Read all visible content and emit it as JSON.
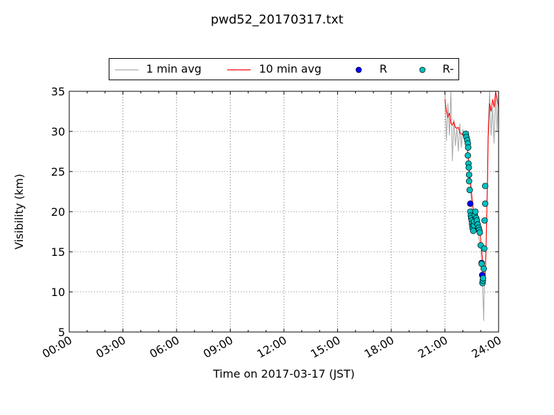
{
  "chart_data": {
    "type": "line",
    "title": "pwd52_20170317.txt",
    "xlabel": "Time on 2017-03-17 (JST)",
    "ylabel": "Visibility (km)",
    "xlim": [
      "00:00",
      "24:00"
    ],
    "ylim": [
      5,
      35
    ],
    "x_ticks": [
      "00:00",
      "03:00",
      "06:00",
      "09:00",
      "12:00",
      "15:00",
      "18:00",
      "21:00",
      "24:00"
    ],
    "y_ticks": [
      5,
      10,
      15,
      20,
      25,
      30,
      35
    ],
    "grid": true,
    "legend": {
      "placement": "top"
    },
    "series": [
      {
        "name": "1 min avg",
        "style": "line",
        "color": "#aaaaaa",
        "points": [
          [
            "21:00",
            35
          ],
          [
            "21:05",
            28.8
          ],
          [
            "21:10",
            33.5
          ],
          [
            "21:15",
            29.5
          ],
          [
            "21:20",
            35
          ],
          [
            "21:25",
            26.3
          ],
          [
            "21:30",
            31.5
          ],
          [
            "21:35",
            28.2
          ],
          [
            "21:40",
            30.5
          ],
          [
            "21:45",
            27.5
          ],
          [
            "21:50",
            31
          ],
          [
            "21:55",
            28
          ],
          [
            "22:00",
            30.2
          ],
          [
            "22:05",
            29.8
          ],
          [
            "22:10",
            28.8
          ],
          [
            "22:15",
            28
          ],
          [
            "22:20",
            26
          ],
          [
            "22:25",
            23.5
          ],
          [
            "22:30",
            20.5
          ],
          [
            "22:35",
            18.8
          ],
          [
            "22:40",
            17.5
          ],
          [
            "22:45",
            19.5
          ],
          [
            "22:50",
            17.3
          ],
          [
            "22:55",
            16.5
          ],
          [
            "23:00",
            15.5
          ],
          [
            "23:05",
            12.5
          ],
          [
            "23:08",
            9
          ],
          [
            "23:10",
            6.4
          ],
          [
            "23:12",
            10.5
          ],
          [
            "23:15",
            11.5
          ],
          [
            "23:18",
            15
          ],
          [
            "23:20",
            19
          ],
          [
            "23:22",
            23.5
          ],
          [
            "23:25",
            30.5
          ],
          [
            "23:30",
            35
          ],
          [
            "23:35",
            29.5
          ],
          [
            "23:40",
            33
          ],
          [
            "23:45",
            28.5
          ],
          [
            "23:50",
            35
          ],
          [
            "23:55",
            30
          ],
          [
            "24:00",
            35
          ]
        ]
      },
      {
        "name": "10 min avg",
        "style": "line",
        "color": "#ff0000",
        "points": [
          [
            "21:00",
            34
          ],
          [
            "21:05",
            32.5
          ],
          [
            "21:10",
            31.8
          ],
          [
            "21:15",
            32.3
          ],
          [
            "21:20",
            31
          ],
          [
            "21:25",
            30.8
          ],
          [
            "21:30",
            31.2
          ],
          [
            "21:35",
            30.5
          ],
          [
            "21:40",
            30.4
          ],
          [
            "21:45",
            30.5
          ],
          [
            "21:50",
            29.8
          ],
          [
            "22:00",
            29.6
          ],
          [
            "22:10",
            29
          ],
          [
            "22:15",
            27.8
          ],
          [
            "22:20",
            26.2
          ],
          [
            "22:25",
            24
          ],
          [
            "22:30",
            22
          ],
          [
            "22:35",
            20.3
          ],
          [
            "22:40",
            19.3
          ],
          [
            "22:45",
            18.8
          ],
          [
            "22:50",
            18.5
          ],
          [
            "22:55",
            17.8
          ],
          [
            "23:00",
            16.5
          ],
          [
            "23:05",
            14.5
          ],
          [
            "23:10",
            12.5
          ],
          [
            "23:12",
            11.2
          ],
          [
            "23:15",
            12
          ],
          [
            "23:18",
            15.5
          ],
          [
            "23:20",
            19.5
          ],
          [
            "23:23",
            24
          ],
          [
            "23:25",
            29
          ],
          [
            "23:30",
            33.5
          ],
          [
            "23:35",
            32.5
          ],
          [
            "23:40",
            34
          ],
          [
            "23:45",
            33
          ],
          [
            "23:50",
            35
          ],
          [
            "23:55",
            34
          ],
          [
            "24:00",
            33
          ]
        ]
      },
      {
        "name": "R",
        "style": "marker",
        "color": "#0000ff",
        "points": [
          [
            "22:25",
            21
          ],
          [
            "23:03",
            13.6
          ],
          [
            "23:05",
            12.1
          ]
        ]
      },
      {
        "name": "R-",
        "style": "marker",
        "color": "#00bfbf",
        "points": [
          [
            "22:10",
            29.7
          ],
          [
            "22:12",
            29.3
          ],
          [
            "22:15",
            28.9
          ],
          [
            "22:17",
            28.5
          ],
          [
            "22:18",
            28.0
          ],
          [
            "22:17",
            27.0
          ],
          [
            "22:19",
            26.0
          ],
          [
            "22:20",
            25.5
          ],
          [
            "22:21",
            24.6
          ],
          [
            "22:21",
            23.8
          ],
          [
            "22:23",
            22.7
          ],
          [
            "22:25",
            20.0
          ],
          [
            "22:27",
            19.5
          ],
          [
            "22:28",
            19.2
          ],
          [
            "22:30",
            18.9
          ],
          [
            "22:31",
            18.5
          ],
          [
            "22:32",
            18.2
          ],
          [
            "22:33",
            17.9
          ],
          [
            "22:35",
            17.6
          ],
          [
            "22:37",
            18.3
          ],
          [
            "22:38",
            18.8
          ],
          [
            "22:40",
            19.6
          ],
          [
            "22:42",
            20.0
          ],
          [
            "22:45",
            19.2
          ],
          [
            "22:47",
            18.9
          ],
          [
            "22:50",
            18.4
          ],
          [
            "22:53",
            18.0
          ],
          [
            "22:55",
            17.7
          ],
          [
            "22:57",
            17.4
          ],
          [
            "23:00",
            15.8
          ],
          [
            "23:03",
            13.5
          ],
          [
            "23:06",
            11.1
          ],
          [
            "23:07",
            11.4
          ],
          [
            "23:08",
            11.7
          ],
          [
            "23:10",
            12.9
          ],
          [
            "23:12",
            15.4
          ],
          [
            "23:13",
            18.9
          ],
          [
            "23:15",
            21.0
          ],
          [
            "23:15",
            23.2
          ]
        ]
      }
    ]
  }
}
